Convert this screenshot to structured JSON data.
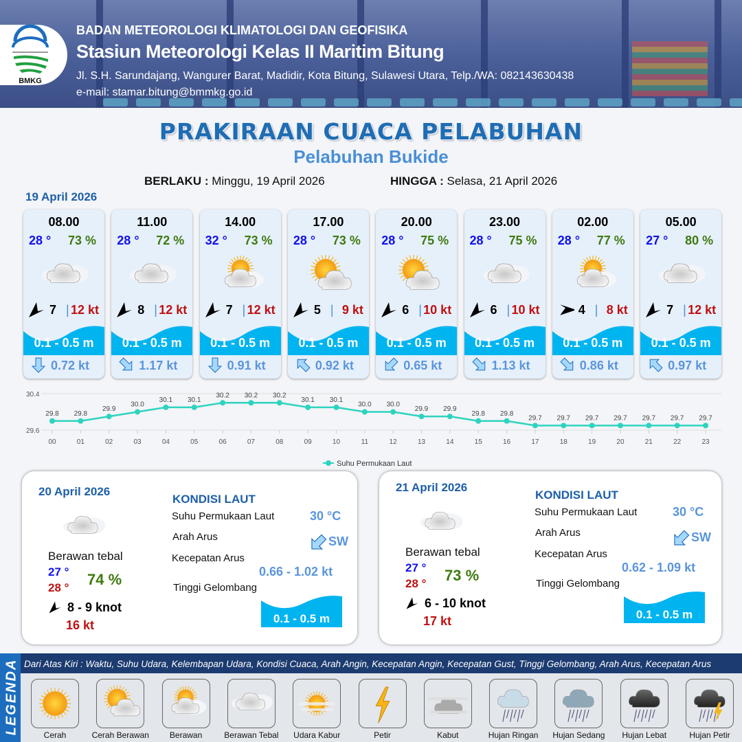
{
  "header": {
    "logo_text": "BMKG",
    "agency": "BADAN METEOROLOGI KLIMATOLOGI DAN GEOFISIKA",
    "station": "Stasiun Meteorologi Kelas II Maritim Bitung",
    "address": "Jl. S.H. Sarundajang, Wangurer Barat, Madidir, Kota Bitung, Sulawesi Utara, Telp./WA: 082143630438",
    "email": "e-mail: stamar.bitung@bmmkg.go.id"
  },
  "title": "PRAKIRAAN CUACA PELABUHAN",
  "subtitle": "Pelabuhan Bukide",
  "validity": {
    "from_label": "BERLAKU :",
    "from": "Minggu, 19 April 2026",
    "to_label": "HINGGA :",
    "to": "Selasa, 21 April 2026"
  },
  "day1_date": "19 April 2026",
  "colors": {
    "temp": "#1010ee",
    "humidity": "#3f7a10",
    "gust": "#c01010",
    "wave": "#00b4f0",
    "current": "#5a95dc",
    "chart_line": "#2ed3bf"
  },
  "forecast": [
    {
      "time": "08.00",
      "temp": "28 °",
      "humidity": "73 %",
      "weather": "berawan-tebal",
      "wind_dir_deg": 225,
      "wind": "7",
      "gust": "12 kt",
      "wave": "0.1 - 0.5 m",
      "current_dir": "S",
      "current": "0.72 kt"
    },
    {
      "time": "11.00",
      "temp": "28 °",
      "humidity": "72 %",
      "weather": "berawan-tebal",
      "wind_dir_deg": 225,
      "wind": "8",
      "gust": "12 kt",
      "wave": "0.1 - 0.5 m",
      "current_dir": "SE",
      "current": "1.17 kt"
    },
    {
      "time": "14.00",
      "temp": "32 °",
      "humidity": "73 %",
      "weather": "berawan",
      "wind_dir_deg": 225,
      "wind": "7",
      "gust": "12 kt",
      "wave": "0.1 - 0.5 m",
      "current_dir": "S",
      "current": "0.91 kt"
    },
    {
      "time": "17.00",
      "temp": "28 °",
      "humidity": "73 %",
      "weather": "cerah-berawan",
      "wind_dir_deg": 225,
      "wind": "5",
      "gust": "9 kt",
      "wave": "0.1 - 0.5 m",
      "current_dir": "NW",
      "current": "0.92 kt"
    },
    {
      "time": "20.00",
      "temp": "28 °",
      "humidity": "75 %",
      "weather": "cerah-berawan",
      "wind_dir_deg": 225,
      "wind": "6",
      "gust": "10 kt",
      "wave": "0.1 - 0.5 m",
      "current_dir": "SW",
      "current": "0.65 kt"
    },
    {
      "time": "23.00",
      "temp": "28 °",
      "humidity": "75 %",
      "weather": "berawan-tebal",
      "wind_dir_deg": 225,
      "wind": "6",
      "gust": "10 kt",
      "wave": "0.1 - 0.5 m",
      "current_dir": "SE",
      "current": "1.13 kt"
    },
    {
      "time": "02.00",
      "temp": "28 °",
      "humidity": "77 %",
      "weather": "berawan",
      "wind_dir_deg": 90,
      "wind": "4",
      "gust": "8 kt",
      "wave": "0.1 - 0.5 m",
      "current_dir": "SE",
      "current": "0.86 kt"
    },
    {
      "time": "05.00",
      "temp": "27 °",
      "humidity": "80 %",
      "weather": "berawan-tebal",
      "wind_dir_deg": 225,
      "wind": "7",
      "gust": "12 kt",
      "wave": "0.1 - 0.5 m",
      "current_dir": "NW",
      "current": "0.97 kt"
    }
  ],
  "chart_data": {
    "type": "line",
    "categories": [
      "00",
      "01",
      "02",
      "03",
      "04",
      "05",
      "06",
      "07",
      "08",
      "09",
      "10",
      "11",
      "12",
      "13",
      "14",
      "15",
      "16",
      "17",
      "18",
      "19",
      "20",
      "21",
      "22",
      "23"
    ],
    "series": [
      {
        "name": "Suhu Permukaan Laut",
        "values": [
          29.8,
          29.8,
          29.9,
          30.0,
          30.1,
          30.1,
          30.2,
          30.2,
          30.2,
          30.1,
          30.1,
          30.0,
          30.0,
          29.9,
          29.9,
          29.8,
          29.8,
          29.7,
          29.7,
          29.7,
          29.7,
          29.7,
          29.7,
          29.7
        ]
      }
    ],
    "ylim": [
      29.6,
      30.4
    ],
    "yticks": [
      "29.6",
      "30.4"
    ],
    "grid": true,
    "legend": "bottom",
    "data_labels": true
  },
  "daily": [
    {
      "date": "20 April 2026",
      "weather": "berawan-tebal",
      "condition": "Berawan tebal",
      "tmin": "27 °",
      "tmax": "28 °",
      "humidity": "74 %",
      "wind": "8  - 9 knot",
      "gust": "16 kt",
      "sea_title": "KONDISI LAUT",
      "sst_label": "Suhu Permukaan Laut",
      "sst": "30 °C",
      "dir_label": "Arah Arus",
      "dir": "SW",
      "speed_label": "Kecepatan Arus",
      "speed": "0.66 - 1.02 kt",
      "wave_label": "Tinggi Gelombang",
      "wave": "0.1 - 0.5 m"
    },
    {
      "date": "21 April 2026",
      "weather": "berawan-tebal",
      "condition": "Berawan tebal",
      "tmin": "27 °",
      "tmax": "28 °",
      "humidity": "73 %",
      "wind": "6 - 10 knot",
      "gust": "17 kt",
      "sea_title": "KONDISI LAUT",
      "sst_label": "Suhu Permukaan Laut",
      "sst": "30 °C",
      "dir_label": "Arah Arus",
      "dir": "SW",
      "speed_label": "Kecepatan Arus",
      "speed": "0.62 - 1.09 kt",
      "wave_label": "Tinggi Gelombang",
      "wave": "0.1 - 0.5 m"
    }
  ],
  "legend": {
    "title": "LEGENDA",
    "description": "Dari Atas Kiri : Waktu, Suhu Udara, Kelembapan Udara, Kondisi Cuaca, Arah Angin, Kecepatan Angin, Kecepatan Gust, Tinggi Gelombang, Arah Arus, Kecepatan Arus",
    "items": [
      {
        "label": "Cerah",
        "icon": "cerah"
      },
      {
        "label": "Cerah Berawan",
        "icon": "cerah-berawan"
      },
      {
        "label": "Berawan",
        "icon": "berawan"
      },
      {
        "label": "Berawan Tebal",
        "icon": "berawan-tebal"
      },
      {
        "label": "Udara Kabur",
        "icon": "udara-kabur"
      },
      {
        "label": "Petir",
        "icon": "petir"
      },
      {
        "label": "Kabut",
        "icon": "kabut"
      },
      {
        "label": "Hujan Ringan",
        "icon": "hujan-ringan"
      },
      {
        "label": "Hujan Sedang",
        "icon": "hujan-sedang"
      },
      {
        "label": "Hujan Lebat",
        "icon": "hujan-lebat"
      },
      {
        "label": "Hujan Petir",
        "icon": "hujan-petir"
      }
    ]
  }
}
